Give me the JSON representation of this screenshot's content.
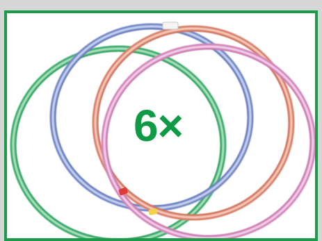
{
  "badge": {
    "text": "6×",
    "color": "#0f9a46"
  },
  "frame": {
    "border_color": "#1c9a4a",
    "background": "#ffffff"
  },
  "hoops": [
    {
      "name": "green-hoop",
      "color": "#5cc08a"
    },
    {
      "name": "blue-hoop",
      "color": "#8fa4d6"
    },
    {
      "name": "orange-hoop",
      "color": "#e59a82"
    },
    {
      "name": "pink-hoop",
      "color": "#dd9cc8"
    }
  ]
}
